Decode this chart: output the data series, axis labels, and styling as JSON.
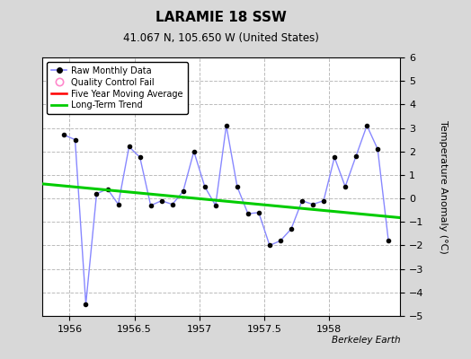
{
  "title": "LARAMIE 18 SSW",
  "subtitle": "41.067 N, 105.650 W (United States)",
  "ylabel": "Temperature Anomaly (°C)",
  "attribution": "Berkeley Earth",
  "background_color": "#d8d8d8",
  "plot_bg_color": "#ffffff",
  "ylim": [
    -5,
    6
  ],
  "yticks": [
    -5,
    -4,
    -3,
    -2,
    -1,
    0,
    1,
    2,
    3,
    4,
    5,
    6
  ],
  "xlim": [
    1955.79,
    1958.55
  ],
  "xticks": [
    1956,
    1956.5,
    1957,
    1957.5,
    1958
  ],
  "raw_x": [
    1955.958,
    1956.042,
    1956.125,
    1956.208,
    1956.292,
    1956.375,
    1956.458,
    1956.542,
    1956.625,
    1956.708,
    1956.792,
    1956.875,
    1956.958,
    1957.042,
    1957.125,
    1957.208,
    1957.292,
    1957.375,
    1957.458,
    1957.542,
    1957.625,
    1957.708,
    1957.792,
    1957.875,
    1957.958,
    1958.042,
    1958.125,
    1958.208,
    1958.292,
    1958.375,
    1958.458
  ],
  "raw_y": [
    2.7,
    2.5,
    -4.5,
    0.2,
    0.4,
    -0.25,
    2.2,
    1.75,
    -0.3,
    -0.1,
    -0.25,
    0.3,
    2.0,
    0.5,
    -0.3,
    3.1,
    0.5,
    -0.65,
    -0.6,
    -2.0,
    -1.8,
    -1.3,
    -0.1,
    -0.25,
    -0.1,
    1.75,
    0.5,
    1.8,
    3.1,
    2.1,
    -1.8
  ],
  "trend_x": [
    1955.79,
    1958.55
  ],
  "trend_y": [
    0.62,
    -0.82
  ],
  "raw_line_color": "#8888ff",
  "dot_color": "#000000",
  "trend_color": "#00cc00",
  "ma_color": "#ff0000",
  "grid_color": "#bbbbbb",
  "title_fontsize": 11,
  "subtitle_fontsize": 8.5,
  "label_fontsize": 8,
  "tick_fontsize": 8,
  "attribution_fontsize": 7.5
}
